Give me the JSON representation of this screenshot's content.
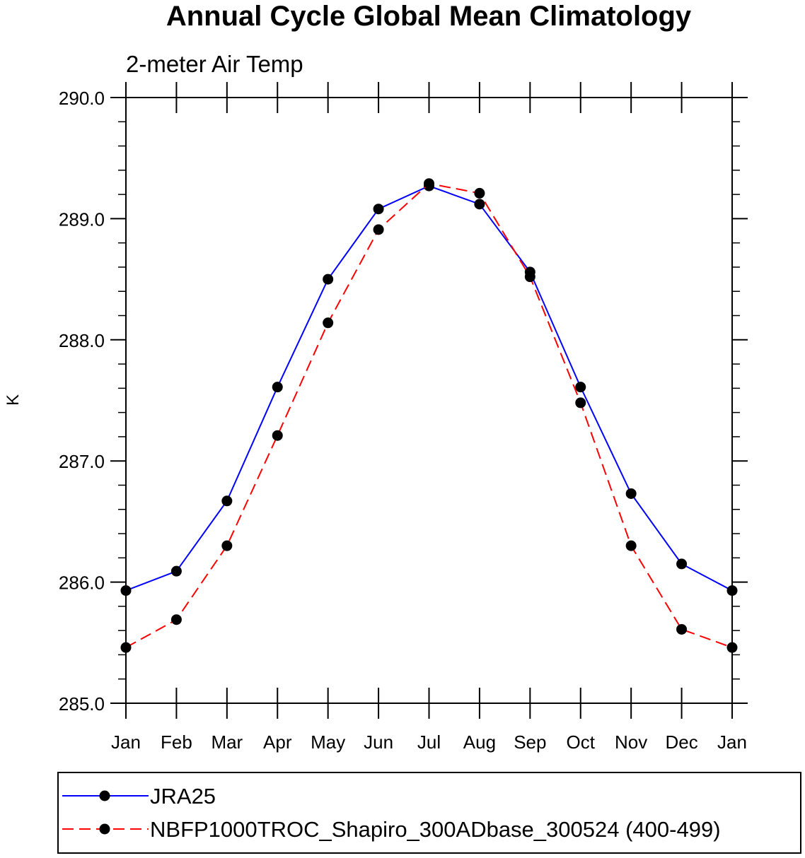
{
  "chart_data": {
    "type": "line",
    "title": "Annual Cycle Global Mean Climatology",
    "subtitle": "2-meter Air Temp",
    "ylabel": "K",
    "xlabel": "",
    "ylim": [
      285.0,
      290.0
    ],
    "yticks": [
      "285.0",
      "286.0",
      "287.0",
      "288.0",
      "289.0",
      "290.0"
    ],
    "categories": [
      "Jan",
      "Feb",
      "Mar",
      "Apr",
      "May",
      "Jun",
      "Jul",
      "Aug",
      "Sep",
      "Oct",
      "Nov",
      "Dec",
      "Jan"
    ],
    "series": [
      {
        "name": "JRA25",
        "color": "#0000ff",
        "dash": "solid",
        "values": [
          285.93,
          286.09,
          286.67,
          287.61,
          288.5,
          289.08,
          289.27,
          289.12,
          288.56,
          287.61,
          286.73,
          286.15,
          285.93
        ]
      },
      {
        "name": "NBFP1000TROC_Shapiro_300ADbase_300524 (400-499)",
        "color": "#ff0000",
        "dash": "dashed",
        "values": [
          285.46,
          285.69,
          286.3,
          287.21,
          288.14,
          288.91,
          289.29,
          289.21,
          288.52,
          287.48,
          286.3,
          285.61,
          285.46
        ]
      }
    ],
    "marker_color": "#000000",
    "legend_position": "bottom"
  }
}
